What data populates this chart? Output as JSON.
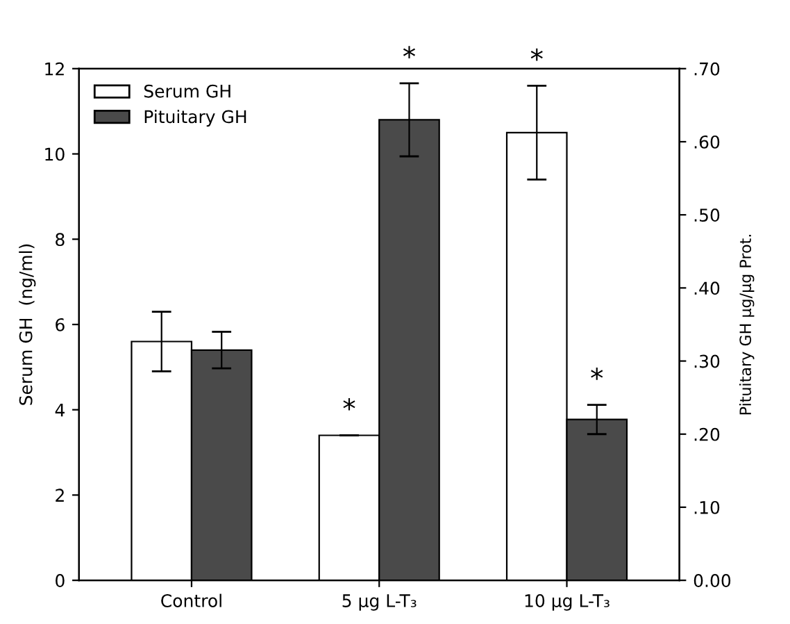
{
  "chart_data": {
    "type": "bar",
    "ylabel": "Serum GH  (ng/ml)",
    "y2label": "Pituitary GH µg/µg Prot.",
    "categories": [
      "Control",
      "5 µg L-T₃",
      "10 µg L-T₃"
    ],
    "series": [
      {
        "name": "Serum GH",
        "color": "#ffffff",
        "values": [
          5.6,
          3.4,
          10.5
        ],
        "errors": [
          0.7,
          null,
          1.1
        ]
      },
      {
        "name": "Pituitary GH",
        "color": "#4a4a4a",
        "values": [
          0.315,
          0.63,
          0.22
        ],
        "errors": [
          0.025,
          0.05,
          0.02
        ],
        "axis": "y2"
      }
    ],
    "ylim": [
      0,
      12
    ],
    "yticks": [
      0,
      2,
      4,
      6,
      8,
      10,
      12
    ],
    "y2lim": [
      0,
      0.7
    ],
    "y2ticks": [
      {
        "value": 0,
        "label": "0.00"
      },
      {
        "value": 0.1,
        "label": ".10"
      },
      {
        "value": 0.2,
        "label": ".20"
      },
      {
        "value": 0.3,
        "label": ".30"
      },
      {
        "value": 0.4,
        "label": ".40"
      },
      {
        "value": 0.5,
        "label": ".50"
      },
      {
        "value": 0.6,
        "label": ".60"
      },
      {
        "value": 0.7,
        "label": ".70"
      }
    ],
    "annotations": [
      "*",
      "*",
      "*",
      "*"
    ],
    "legend": "top left",
    "grid": false
  }
}
